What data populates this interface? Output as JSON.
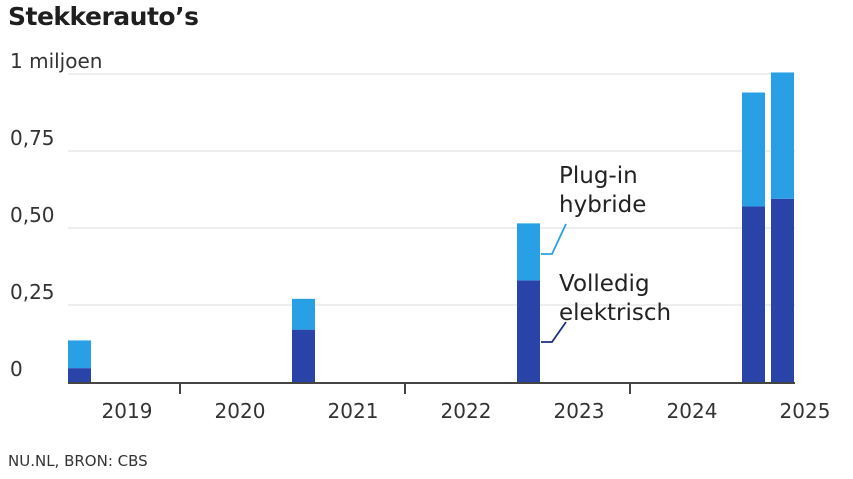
{
  "title": "Stekkerauto’s",
  "source": "NU.NL, BRON: CBS",
  "colors": {
    "elektrisch": "#2a43a8",
    "hybride": "#29a0e6",
    "grid": "#dddddd",
    "axis": "#444444",
    "annotation_line_elektrisch": "#1c2f80",
    "annotation_line_hybride": "#29a0e6"
  },
  "chart_data": {
    "type": "bar",
    "stacked": true,
    "x": [
      "2019-1",
      "2021-1",
      "2023-1",
      "2025-1",
      "2025-2"
    ],
    "year_labels": [
      "2019",
      "2020",
      "2021",
      "2022",
      "2023",
      "2024",
      "2025"
    ],
    "series": [
      {
        "name": "Volledig elektrisch",
        "values": [
          0.045,
          0.17,
          0.33,
          0.57,
          0.595
        ]
      },
      {
        "name": "Plug-in hybride",
        "values": [
          0.09,
          0.1,
          0.185,
          0.37,
          0.41
        ]
      }
    ],
    "y_ticks": [
      {
        "value": 0,
        "label": "0"
      },
      {
        "value": 0.25,
        "label": "0,25"
      },
      {
        "value": 0.5,
        "label": "0,50"
      },
      {
        "value": 0.75,
        "label": "0,75"
      },
      {
        "value": 1.0,
        "label": "1 miljoen"
      }
    ],
    "ylim": [
      0,
      1.0
    ],
    "grid": true,
    "annotations": [
      {
        "series": "Plug-in hybride",
        "lines": [
          "Plug-in",
          "hybride"
        ]
      },
      {
        "series": "Volledig elektrisch",
        "lines": [
          "Volledig",
          "elektrisch"
        ]
      }
    ]
  }
}
